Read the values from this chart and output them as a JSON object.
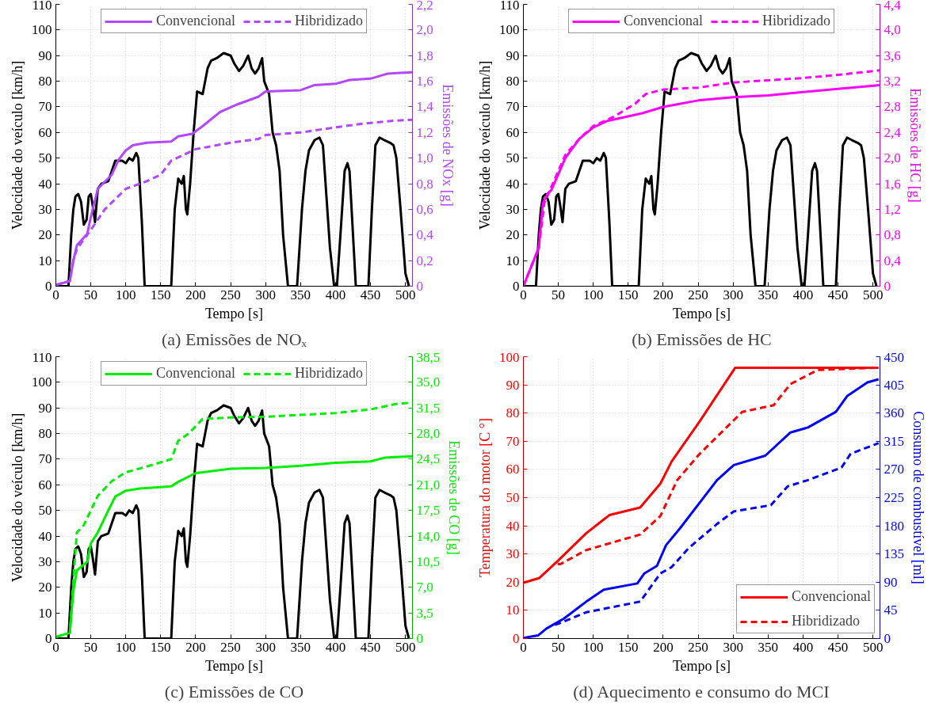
{
  "chart_data": [
    {
      "type": "line",
      "title": "(a) Emissões de NOₓ",
      "xlabel": "Tempo [s]",
      "ylabel": "Velocidade do veículo [km/h]",
      "y2label": "Emissões de NOx [g]",
      "xlim": [
        0,
        510
      ],
      "xticks": [
        0,
        50,
        100,
        150,
        200,
        250,
        300,
        350,
        400,
        450,
        500
      ],
      "ylim": [
        0,
        110
      ],
      "yticks": [
        0,
        10,
        20,
        30,
        40,
        50,
        60,
        70,
        80,
        90,
        100,
        110
      ],
      "y2lim": [
        0,
        2.2
      ],
      "y2ticks": [
        0,
        {
          "value": 0.2,
          "label": "0,2"
        },
        {
          "value": 0.4,
          "label": "0,4"
        },
        {
          "value": 0.6,
          "label": "0,6"
        },
        {
          "value": 0.8,
          "label": "0,8"
        },
        {
          "value": 1.0,
          "label": "1,0"
        },
        {
          "value": 1.2,
          "label": "1,2"
        },
        {
          "value": 1.4,
          "label": "1,4"
        },
        {
          "value": 1.6,
          "label": "1,6"
        },
        {
          "value": 1.8,
          "label": "1,8"
        },
        {
          "value": 2.0,
          "label": "2,0"
        },
        {
          "value": 2.2,
          "label": "2,2"
        }
      ],
      "grid": true,
      "legend": "top",
      "series": [
        {
          "color": "#000000",
          "line_style": "solid",
          "x": [
            0,
            18,
            22,
            25,
            28,
            32,
            36,
            40,
            44,
            47,
            50,
            53,
            56,
            60,
            65,
            75,
            85,
            95,
            100,
            105,
            110,
            115,
            118,
            123,
            127,
            165,
            170,
            175,
            180,
            183,
            186,
            188,
            192,
            197,
            202,
            210,
            217,
            222,
            230,
            240,
            250,
            255,
            262,
            268,
            275,
            280,
            285,
            290,
            295,
            298,
            305,
            310,
            315,
            320,
            325,
            332,
            345,
            352,
            357,
            362,
            370,
            377,
            382,
            387,
            392,
            398,
            402,
            407,
            413,
            417,
            420,
            425,
            429,
            447,
            452,
            457,
            463,
            470,
            478,
            483,
            487,
            493,
            500,
            505
          ],
          "values": [
            0,
            0,
            20,
            30,
            35,
            36,
            33,
            24,
            26,
            35,
            36,
            31,
            25,
            38,
            40,
            41,
            49,
            49,
            48,
            50,
            49,
            52,
            50,
            25,
            0,
            0,
            30,
            42,
            40,
            43,
            30,
            28,
            40,
            60,
            76,
            75,
            85,
            88,
            89,
            91,
            90,
            87,
            84,
            86,
            90,
            85,
            83,
            85,
            89,
            80,
            75,
            60,
            55,
            45,
            20,
            0,
            0,
            30,
            45,
            53,
            57,
            58,
            55,
            35,
            15,
            0,
            0,
            20,
            45,
            48,
            45,
            20,
            0,
            0,
            30,
            55,
            58,
            57,
            56,
            55,
            50,
            30,
            5,
            0
          ]
        },
        {
          "name": "Convencional",
          "color": "#b347ff",
          "line_style": "solid",
          "axis": "y2",
          "x": [
            0,
            20,
            25,
            30,
            45,
            50,
            60,
            80,
            90,
            100,
            110,
            130,
            165,
            175,
            195,
            210,
            235,
            260,
            290,
            300,
            350,
            370,
            400,
            420,
            450,
            475,
            510
          ],
          "values": [
            0.01,
            0.04,
            0.2,
            0.32,
            0.41,
            0.54,
            0.76,
            0.87,
            0.99,
            1.06,
            1.1,
            1.12,
            1.13,
            1.17,
            1.19,
            1.25,
            1.36,
            1.42,
            1.48,
            1.52,
            1.53,
            1.57,
            1.58,
            1.61,
            1.62,
            1.66,
            1.67
          ]
        },
        {
          "name": "Hibridizado",
          "color": "#b347ff",
          "line_style": "dashed",
          "axis": "y2",
          "x": [
            0,
            20,
            25,
            30,
            50,
            70,
            100,
            130,
            150,
            165,
            200,
            250,
            290,
            300,
            350,
            400,
            440,
            480,
            510
          ],
          "values": [
            0.01,
            0.04,
            0.2,
            0.29,
            0.44,
            0.6,
            0.76,
            0.82,
            0.87,
            0.98,
            1.07,
            1.12,
            1.15,
            1.18,
            1.2,
            1.24,
            1.27,
            1.29,
            1.3
          ]
        }
      ]
    },
    {
      "type": "line",
      "title": "(b) Emissões de HC",
      "xlabel": "Tempo [s]",
      "ylabel": "Velocidade do veículo [km/h]",
      "y2label": "Emissões de HC [g]",
      "xlim": [
        0,
        510
      ],
      "xticks": [
        0,
        50,
        100,
        150,
        200,
        250,
        300,
        350,
        400,
        450,
        500
      ],
      "ylim": [
        0,
        110
      ],
      "yticks": [
        0,
        10,
        20,
        30,
        40,
        50,
        60,
        70,
        80,
        90,
        100,
        110
      ],
      "y2lim": [
        0,
        4.4
      ],
      "y2ticks": [
        0,
        {
          "value": 0.4,
          "label": "0,4"
        },
        {
          "value": 0.8,
          "label": "0,8"
        },
        {
          "value": 1.2,
          "label": "1,2"
        },
        {
          "value": 1.6,
          "label": "1,6"
        },
        {
          "value": 2.0,
          "label": "2,0"
        },
        {
          "value": 2.4,
          "label": "2,4"
        },
        {
          "value": 2.8,
          "label": "2,8"
        },
        {
          "value": 3.2,
          "label": "3,2"
        },
        {
          "value": 3.6,
          "label": "3,6"
        },
        {
          "value": 4.0,
          "label": "4,0"
        },
        {
          "value": 4.4,
          "label": "4,4"
        }
      ],
      "grid": true,
      "legend": "top",
      "series": [
        {
          "color": "#000000",
          "line_style": "solid",
          "x": [
            0,
            18,
            22,
            25,
            28,
            32,
            36,
            40,
            44,
            47,
            50,
            53,
            56,
            60,
            65,
            75,
            85,
            95,
            100,
            105,
            110,
            115,
            118,
            123,
            127,
            165,
            170,
            175,
            180,
            183,
            186,
            188,
            192,
            197,
            202,
            210,
            217,
            222,
            230,
            240,
            250,
            255,
            262,
            268,
            275,
            280,
            285,
            290,
            295,
            298,
            305,
            310,
            315,
            320,
            325,
            332,
            345,
            352,
            357,
            362,
            370,
            377,
            382,
            387,
            392,
            398,
            402,
            407,
            413,
            417,
            420,
            425,
            429,
            447,
            452,
            457,
            463,
            470,
            478,
            483,
            487,
            493,
            500,
            505
          ],
          "values": [
            0,
            0,
            20,
            30,
            35,
            36,
            33,
            24,
            26,
            35,
            36,
            31,
            25,
            38,
            40,
            41,
            49,
            49,
            48,
            50,
            49,
            52,
            50,
            25,
            0,
            0,
            30,
            42,
            40,
            43,
            30,
            28,
            40,
            60,
            76,
            75,
            85,
            88,
            89,
            91,
            90,
            87,
            84,
            86,
            90,
            85,
            83,
            85,
            89,
            80,
            75,
            60,
            55,
            45,
            20,
            0,
            0,
            30,
            45,
            53,
            57,
            58,
            55,
            35,
            15,
            0,
            0,
            20,
            45,
            48,
            45,
            20,
            0,
            0,
            30,
            55,
            58,
            57,
            56,
            55,
            50,
            30,
            5,
            0
          ]
        },
        {
          "name": "Convencional",
          "color": "#ff00ff",
          "line_style": "solid",
          "axis": "y2",
          "x": [
            0,
            22,
            28,
            35,
            40,
            50,
            60,
            80,
            100,
            120,
            170,
            200,
            250,
            300,
            350,
            400,
            450,
            510
          ],
          "values": [
            0,
            0.6,
            1.3,
            1.45,
            1.5,
            1.75,
            2.0,
            2.3,
            2.48,
            2.58,
            2.7,
            2.8,
            2.9,
            2.95,
            2.98,
            3.03,
            3.08,
            3.14
          ]
        },
        {
          "name": "Hibridizado",
          "color": "#ff00ff",
          "line_style": "dashed",
          "axis": "y2",
          "x": [
            0,
            22,
            30,
            40,
            50,
            60,
            80,
            100,
            130,
            160,
            175,
            200,
            250,
            300,
            400,
            450,
            510
          ],
          "values": [
            0,
            0.6,
            1.3,
            1.55,
            1.8,
            2.05,
            2.3,
            2.5,
            2.65,
            2.85,
            3.0,
            3.07,
            3.1,
            3.18,
            3.25,
            3.3,
            3.37
          ]
        }
      ]
    },
    {
      "type": "line",
      "title": "(c) Emissões de CO",
      "xlabel": "Tempo [s]",
      "ylabel": "Velocidade do veículo [km/h]",
      "y2label": "Emissões de CO [g]",
      "xlim": [
        0,
        510
      ],
      "xticks": [
        0,
        50,
        100,
        150,
        200,
        250,
        300,
        350,
        400,
        450,
        500
      ],
      "ylim": [
        0,
        110
      ],
      "yticks": [
        0,
        10,
        20,
        30,
        40,
        50,
        60,
        70,
        80,
        90,
        100,
        110
      ],
      "y2lim": [
        0,
        38.5
      ],
      "y2ticks": [
        0,
        {
          "value": 3.5,
          "label": "3,5"
        },
        {
          "value": 7.0,
          "label": "7,0"
        },
        {
          "value": 10.5,
          "label": "10,5"
        },
        {
          "value": 14.0,
          "label": "14,0"
        },
        {
          "value": 17.5,
          "label": "17,5"
        },
        {
          "value": 21.0,
          "label": "21,0"
        },
        {
          "value": 24.5,
          "label": "24,5"
        },
        {
          "value": 28.0,
          "label": "28,0"
        },
        {
          "value": 31.5,
          "label": "31,5"
        },
        {
          "value": 35.0,
          "label": "35,0"
        },
        {
          "value": 38.5,
          "label": "38,5"
        }
      ],
      "grid": true,
      "legend": "top",
      "series": [
        {
          "color": "#000000",
          "line_style": "solid",
          "x": [
            0,
            18,
            22,
            25,
            28,
            32,
            36,
            40,
            44,
            47,
            50,
            53,
            56,
            60,
            65,
            75,
            85,
            95,
            100,
            105,
            110,
            115,
            118,
            123,
            127,
            165,
            170,
            175,
            180,
            183,
            186,
            188,
            192,
            197,
            202,
            210,
            217,
            222,
            230,
            240,
            250,
            255,
            262,
            268,
            275,
            280,
            285,
            290,
            295,
            298,
            305,
            310,
            315,
            320,
            325,
            332,
            345,
            352,
            357,
            362,
            370,
            377,
            382,
            387,
            392,
            398,
            402,
            407,
            413,
            417,
            420,
            425,
            429,
            447,
            452,
            457,
            463,
            470,
            478,
            483,
            487,
            493,
            500,
            505
          ],
          "values": [
            0,
            0,
            20,
            30,
            35,
            36,
            33,
            24,
            26,
            35,
            36,
            31,
            25,
            38,
            40,
            41,
            49,
            49,
            48,
            50,
            49,
            52,
            50,
            25,
            0,
            0,
            30,
            42,
            40,
            43,
            30,
            28,
            40,
            60,
            76,
            75,
            85,
            88,
            89,
            91,
            90,
            87,
            84,
            86,
            90,
            85,
            83,
            85,
            89,
            80,
            75,
            60,
            55,
            45,
            20,
            0,
            0,
            30,
            45,
            53,
            57,
            58,
            55,
            35,
            15,
            0,
            0,
            20,
            45,
            48,
            45,
            20,
            0,
            0,
            30,
            55,
            58,
            57,
            56,
            55,
            50,
            30,
            5,
            0
          ]
        },
        {
          "name": "Convencional",
          "color": "#00ee00",
          "line_style": "solid",
          "axis": "y2",
          "x": [
            0,
            20,
            25,
            30,
            45,
            50,
            60,
            75,
            85,
            100,
            120,
            165,
            175,
            200,
            250,
            300,
            350,
            400,
            450,
            470,
            510
          ],
          "values": [
            0.2,
            0.8,
            6.5,
            9.3,
            10.5,
            13,
            14.5,
            17.5,
            19.4,
            20.2,
            20.5,
            20.8,
            21.4,
            22.6,
            23.2,
            23.3,
            23.6,
            24.0,
            24.2,
            24.7,
            24.9
          ]
        },
        {
          "name": "Hibridizado",
          "color": "#00ee00",
          "line_style": "dashed",
          "axis": "y2",
          "x": [
            0,
            20,
            25,
            30,
            40,
            55,
            60,
            80,
            100,
            130,
            165,
            175,
            190,
            210,
            250,
            300,
            400,
            450,
            490,
            510
          ],
          "values": [
            0.2,
            0.8,
            8,
            14.5,
            15.5,
            18.5,
            19.5,
            21.5,
            22.7,
            23.5,
            24.5,
            27,
            28,
            30,
            30.2,
            30.3,
            30.8,
            31.3,
            32.1,
            32.2
          ]
        }
      ]
    },
    {
      "type": "line",
      "title": "(d) Aquecimento e consumo do MCI",
      "xlabel": "Tempo [s]",
      "ylabel": "Temperatura do motor [C °]",
      "y2label": "Consumo de combustível [ml]",
      "xlim": [
        0,
        510
      ],
      "xticks": [
        0,
        50,
        100,
        150,
        200,
        250,
        300,
        350,
        400,
        450,
        500
      ],
      "ylim": [
        0,
        100
      ],
      "yticks": [
        0,
        10,
        20,
        30,
        40,
        50,
        60,
        70,
        80,
        90,
        100
      ],
      "y2lim": [
        0,
        450
      ],
      "y2ticks": [
        0,
        45,
        90,
        135,
        180,
        225,
        270,
        315,
        360,
        405,
        450
      ],
      "grid": true,
      "legend": "bottom right",
      "series": [
        {
          "name": "Convencional",
          "color": "#ff0000",
          "line_style": "solid",
          "x": [
            0,
            23,
            49,
            90,
            123,
            167,
            196,
            212,
            252,
            303,
            508
          ],
          "values": [
            19.8,
            21.5,
            27.5,
            37.4,
            43.8,
            46.5,
            55,
            62.8,
            77,
            96.1,
            96.1
          ]
        },
        {
          "name": "Hibridizado",
          "color": "#ff0000",
          "line_style": "dashed",
          "x": [
            49,
            53,
            90,
            167,
            196,
            220,
            252,
            313,
            358,
            382,
            421,
            508
          ],
          "values": [
            26.5,
            26.4,
            31.4,
            36.9,
            43.5,
            56.2,
            65.5,
            80.4,
            82.8,
            90.3,
            95.3,
            96.1
          ]
        },
        {
          "color": "#0000ff",
          "line_style": "solid",
          "axis": "y2",
          "x": [
            0,
            21,
            33,
            58,
            90,
            115,
            163,
            173,
            191,
            204,
            224,
            277,
            301,
            346,
            382,
            407,
            447,
            463,
            492,
            508
          ],
          "values": [
            1,
            5,
            16,
            32,
            59,
            78,
            88,
            104,
            116,
            149,
            176,
            253,
            277,
            292,
            329,
            337,
            362,
            387,
            409,
            414
          ]
        },
        {
          "color": "#0000ff",
          "line_style": "dashed",
          "axis": "y2",
          "x": [
            45,
            53,
            90,
            167,
            196,
            212,
            236,
            277,
            301,
            354,
            378,
            407,
            455,
            468,
            508
          ],
          "values": [
            22,
            25,
            42,
            59,
            104,
            114,
            144,
            183,
            203,
            213,
            243,
            253,
            273,
            295,
            312
          ]
        }
      ]
    }
  ]
}
